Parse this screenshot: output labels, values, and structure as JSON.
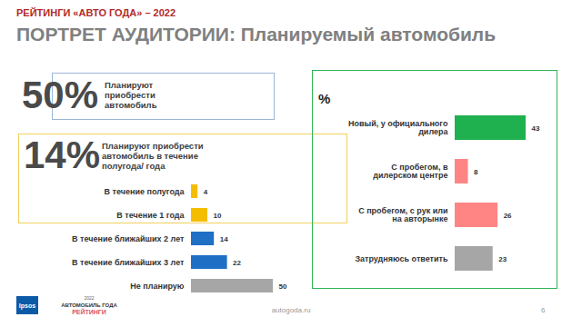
{
  "header": {
    "title": "РЕЙТИНГИ «АВТО ГОДА» – 2022",
    "subtitle": "ПОРТРЕТ АУДИТОРИИ: Планируемый автомобиль"
  },
  "callouts": [
    {
      "label": "50%",
      "text": "Планируют приобрести автомобиль"
    },
    {
      "label": "14%",
      "text": "Планируют приобрести автомобиль в течение полугода/ года"
    }
  ],
  "chart_data": [
    {
      "type": "bar",
      "orientation": "horizontal",
      "categories": [
        "В течение полугода",
        "В течение 1 года",
        "В течение ближайших 2 лет",
        "В течение ближайших 3 лет",
        "Не планирую"
      ],
      "values": [
        4,
        10,
        14,
        22,
        50
      ],
      "colors": [
        "#f5bd00",
        "#f5bd00",
        "#1f6fc4",
        "#1f6fc4",
        "#a6a6a6"
      ],
      "xlim": [
        0,
        50
      ],
      "data_labels": true,
      "tick_labels": "y"
    },
    {
      "type": "bar",
      "orientation": "horizontal",
      "title": "%",
      "categories": [
        "Новый, у официального дилера",
        "С пробегом, в дилерском центре",
        "С пробегом, с рук или на авторынке",
        "Затрудняюсь ответить"
      ],
      "values": [
        43,
        8,
        26,
        23
      ],
      "colors": [
        "#1fb14f",
        "#ff8585",
        "#ff8585",
        "#a6a6a6"
      ],
      "xlim": [
        0,
        43
      ],
      "data_labels": true,
      "tick_labels": "y"
    }
  ],
  "footer": {
    "source": "autogoda.ru",
    "page": "6",
    "logos": [
      "Ipsos",
      "АВТОМОБИЛЬ ГОДА",
      "2022",
      "РЕЙТИНГИ"
    ]
  }
}
